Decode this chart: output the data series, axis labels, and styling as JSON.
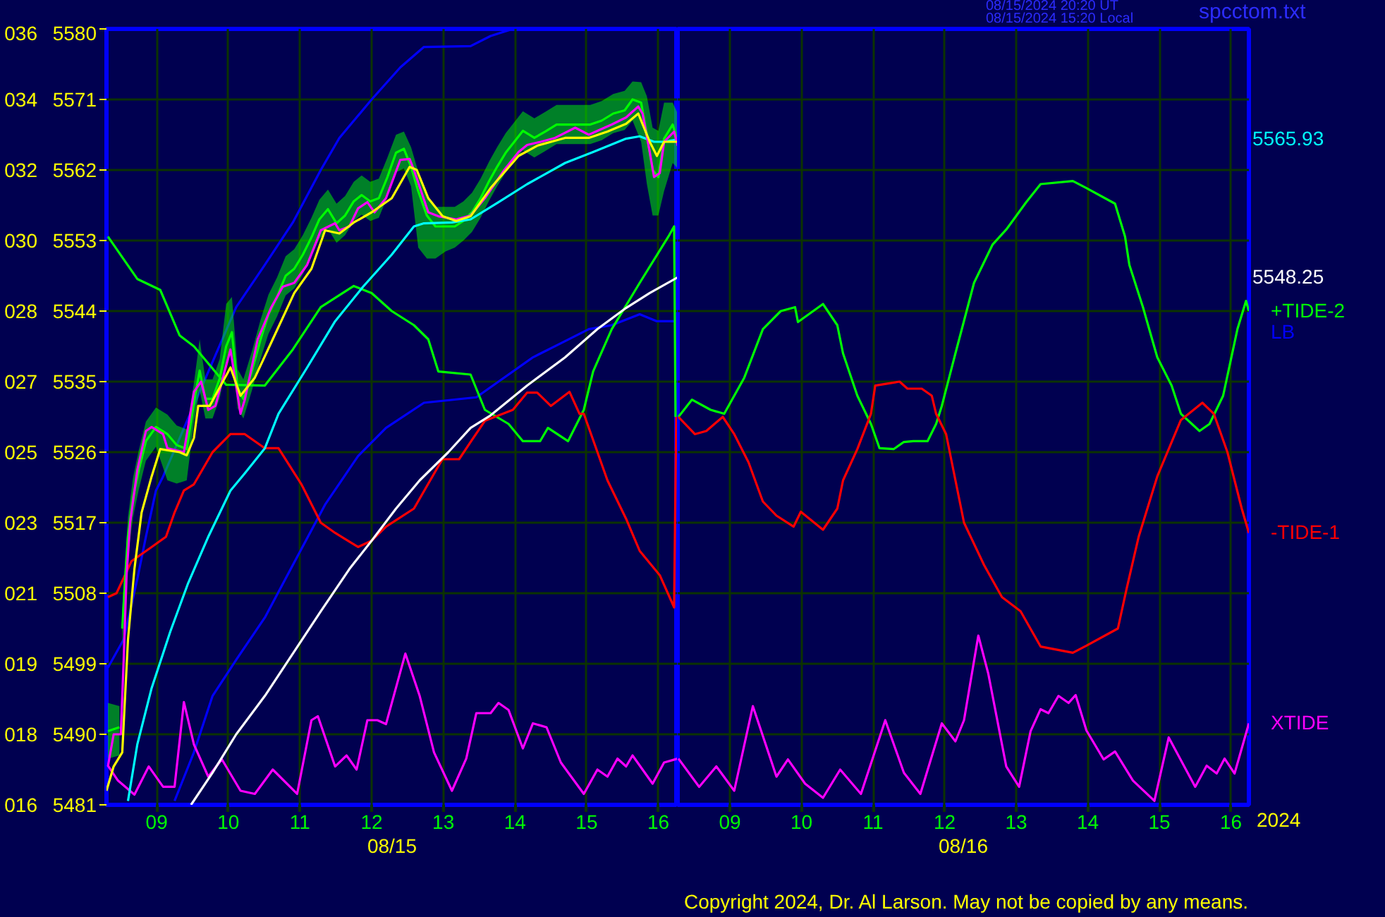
{
  "chart_data": [
    {
      "type": "line",
      "xlabel": "08/15",
      "xlim": [
        8.3,
        16.27
      ],
      "ylim": [
        5481,
        5580
      ],
      "xticks": [
        {
          "value": 9,
          "label": "09"
        },
        10,
        11,
        12,
        13,
        14,
        15,
        16
      ],
      "yticks": [
        5481,
        5490,
        5499,
        5508,
        5517,
        5526,
        5535,
        5544,
        5553,
        5562,
        5571,
        5580
      ],
      "y2lim": [
        15.8,
        35.6
      ],
      "y2ticks": [
        {
          "value": 15.8,
          "label": "016"
        },
        {
          "value": 17.6,
          "label": "018"
        },
        {
          "value": 19.4,
          "label": "019"
        },
        {
          "value": 21.2,
          "label": "021"
        },
        {
          "value": 23.0,
          "label": "023"
        },
        {
          "value": 24.8,
          "label": "025"
        },
        {
          "value": 26.6,
          "label": "027"
        },
        {
          "value": 28.4,
          "label": "028"
        },
        {
          "value": 30.2,
          "label": "030"
        },
        {
          "value": 32.0,
          "label": "032"
        },
        {
          "value": 33.8,
          "label": "034"
        },
        {
          "value": 35.6,
          "label": "036"
        }
      ],
      "grid": true,
      "series": [
        {
          "color": "#0000ff",
          "x": [
            8.32,
            8.54,
            8.73,
            8.85,
            8.99,
            9.09,
            10.11,
            10.51,
            10.9,
            11.29,
            11.55,
            12.0,
            12.4,
            12.73,
            13.38,
            13.66,
            13.97
          ],
          "values": [
            5498.5,
            5502.1,
            5509.8,
            5515.2,
            5521.1,
            5522.9,
            5544.5,
            5549.9,
            5555.3,
            5562.0,
            5566.1,
            5571.0,
            5575.1,
            5577.7,
            5577.8,
            5579.1,
            5580.0
          ]
        },
        {
          "name": "LB",
          "color": "#0000ff",
          "x": [
            9.25,
            9.52,
            9.78,
            10.11,
            10.51,
            10.9,
            11.35,
            11.81,
            12.2,
            12.73,
            13.46,
            14.25,
            14.64,
            15.03,
            15.35,
            15.74,
            15.98,
            16.22,
            16.27
          ],
          "values": [
            5481.5,
            5487.7,
            5494.9,
            5499.5,
            5504.9,
            5511.6,
            5519.3,
            5525.5,
            5529.1,
            5532.3,
            5533.0,
            5538.1,
            5539.9,
            5541.7,
            5542.2,
            5543.6,
            5542.7,
            5542.7,
            5543.1
          ]
        },
        {
          "color": "#00ff00",
          "x": [
            8.32,
            8.73,
            9.05,
            9.32,
            9.52,
            9.97,
            10.51,
            10.9,
            11.29,
            11.75,
            12.0,
            12.28,
            12.59,
            12.79,
            12.93,
            13.38,
            13.58,
            13.91,
            14.11,
            14.35,
            14.46,
            14.74,
            14.96,
            15.09,
            15.35,
            15.74,
            16.14,
            16.22,
            16.24
          ],
          "values": [
            5553.5,
            5548.1,
            5546.7,
            5540.9,
            5539.5,
            5534.6,
            5534.5,
            5539.1,
            5544.5,
            5547.2,
            5546.3,
            5544.0,
            5542.2,
            5540.4,
            5536.3,
            5535.9,
            5531.4,
            5529.6,
            5527.4,
            5527.4,
            5529.1,
            5527.4,
            5531.4,
            5536.3,
            5541.7,
            5547.6,
            5553.5,
            5554.8,
            5530.5
          ]
        },
        {
          "color": "#ff0000",
          "x": [
            8.32,
            8.44,
            8.65,
            8.93,
            9.13,
            9.25,
            9.38,
            9.52,
            9.78,
            10.03,
            10.23,
            10.51,
            10.7,
            11.02,
            11.29,
            11.49,
            11.81,
            12.0,
            12.2,
            12.59,
            12.93,
            12.99,
            13.22,
            13.38,
            13.58,
            13.97,
            14.17,
            14.31,
            14.5,
            14.76,
            14.9,
            14.96,
            15.29,
            15.55,
            15.74,
            16.02,
            16.22,
            16.25
          ],
          "values": [
            5507.5,
            5508.0,
            5512.1,
            5513.9,
            5515.2,
            5518.3,
            5521.1,
            5521.9,
            5526.0,
            5528.3,
            5528.3,
            5526.5,
            5526.5,
            5521.9,
            5517.0,
            5515.7,
            5513.9,
            5514.7,
            5516.5,
            5518.8,
            5524.2,
            5525.1,
            5525.1,
            5527.3,
            5530.0,
            5531.4,
            5533.6,
            5533.6,
            5531.9,
            5533.7,
            5530.9,
            5530.9,
            5522.4,
            5517.5,
            5513.4,
            5510.3,
            5506.2,
            5530.5
          ]
        },
        {
          "color": "#ff00ff",
          "x": [
            8.32,
            8.46,
            8.69,
            8.89,
            9.09,
            9.25,
            9.38,
            9.52,
            9.72,
            9.91,
            10.17,
            10.37,
            10.62,
            10.96,
            11.16,
            11.25,
            11.49,
            11.65,
            11.79,
            11.94,
            12.08,
            12.2,
            12.47,
            12.67,
            12.87,
            13.12,
            13.32,
            13.46,
            13.66,
            13.77,
            13.91,
            14.11,
            14.25,
            14.44,
            14.64,
            14.96,
            15.15,
            15.29,
            15.43,
            15.55,
            15.64,
            15.92,
            16.08,
            16.27
          ],
          "values": [
            5486.0,
            5484.1,
            5482.3,
            5485.9,
            5483.3,
            5483.3,
            5494.1,
            5488.7,
            5484.6,
            5486.8,
            5482.8,
            5482.4,
            5485.5,
            5482.4,
            5491.8,
            5492.3,
            5485.9,
            5487.3,
            5485.5,
            5491.8,
            5491.8,
            5491.3,
            5500.3,
            5494.9,
            5487.7,
            5482.8,
            5486.9,
            5492.7,
            5492.7,
            5494.0,
            5493.1,
            5488.2,
            5491.4,
            5490.9,
            5486.4,
            5482.4,
            5485.5,
            5484.6,
            5486.9,
            5485.9,
            5487.3,
            5483.7,
            5486.4,
            5486.9
          ]
        },
        {
          "color": "#ffffff",
          "x": [
            9.48,
            9.78,
            10.11,
            10.51,
            10.9,
            11.29,
            11.69,
            12.0,
            12.34,
            12.67,
            13.07,
            13.38,
            13.66,
            14.17,
            14.7,
            15.15,
            15.55,
            15.88,
            16.27
          ],
          "values": [
            5481.0,
            5485.1,
            5490.0,
            5494.9,
            5500.3,
            5505.7,
            5511.1,
            5514.7,
            5518.8,
            5522.4,
            5526.0,
            5529.1,
            5530.7,
            5534.5,
            5538.1,
            5541.7,
            5544.4,
            5546.3,
            5548.3
          ]
        },
        {
          "color": "#00ff00",
          "x": [
            8.32,
            8.48,
            8.5,
            8.52,
            8.56,
            8.6,
            8.67,
            8.75,
            8.85,
            8.99,
            9.15,
            9.28,
            9.42,
            9.52,
            9.6,
            9.68,
            9.78,
            9.88,
            9.97,
            10.05,
            10.13,
            10.21,
            10.33,
            10.45,
            10.56,
            10.68,
            10.8,
            10.92,
            11.04,
            11.16,
            11.27,
            11.39,
            11.51,
            11.63,
            11.75,
            11.86,
            11.98,
            12.1,
            12.22,
            12.34,
            12.45,
            12.55,
            12.65,
            12.77,
            12.89,
            13.03,
            13.16,
            13.28,
            13.4,
            13.52,
            13.64,
            13.75,
            13.87,
            13.99,
            14.11,
            14.27,
            14.42,
            14.58,
            14.74,
            14.9,
            15.05,
            15.21,
            15.37,
            15.53,
            15.64,
            15.76,
            15.84,
            15.92,
            16.0,
            16.08,
            16.2,
            16.27
          ],
          "values": [
            5490.4,
            5490.9,
            null,
            5503.5,
            5509.8,
            5515.2,
            5520.2,
            5523.7,
            5527.4,
            5529.2,
            5528.3,
            5526.9,
            5526.4,
            5532.3,
            5536.4,
            5532.8,
            5532.8,
            5535.4,
            5539.5,
            5541.3,
            5534.1,
            5532.8,
            5536.4,
            5540.4,
            5543.6,
            5545.8,
            5548.5,
            5549.4,
            5551.2,
            5553.4,
            5555.7,
            5557.0,
            5555.2,
            5556.2,
            5558.0,
            5558.8,
            5558.0,
            5558.4,
            5561.1,
            5564.2,
            5564.7,
            5562.4,
            5559.3,
            5556.2,
            5554.8,
            5554.8,
            5554.8,
            5555.5,
            5556.6,
            5558.4,
            5560.6,
            5562.4,
            5564.2,
            5565.6,
            5567.0,
            5566.1,
            5566.9,
            5567.8,
            5567.8,
            5567.8,
            5567.8,
            5568.3,
            5569.2,
            5569.6,
            5571.0,
            5570.6,
            5566.5,
            5562.0,
            5561.1,
            5566.0,
            5567.8,
            5565.6
          ],
          "upper": [
            5494.0,
            5493.6,
            null,
            5506.0,
            5512.3,
            5517.7,
            5522.7,
            5526.2,
            5529.9,
            5531.7,
            5530.8,
            5529.4,
            5528.9,
            5534.8,
            5540.4,
            5535.3,
            5535.3,
            5537.9,
            5544.9,
            5545.8,
            5536.6,
            5535.3,
            5538.9,
            5542.9,
            5546.1,
            5548.3,
            5551.0,
            5551.9,
            5553.7,
            5555.9,
            5558.2,
            5559.5,
            5557.7,
            5558.7,
            5560.5,
            5561.3,
            5560.5,
            5560.9,
            5563.6,
            5566.5,
            5566.9,
            5564.9,
            5561.8,
            5558.7,
            5557.3,
            5557.3,
            5557.3,
            5558.0,
            5559.1,
            5560.9,
            5563.1,
            5564.9,
            5566.7,
            5568.1,
            5569.5,
            5568.6,
            5569.4,
            5570.3,
            5570.3,
            5570.3,
            5570.3,
            5570.8,
            5571.7,
            5572.1,
            5573.3,
            5573.2,
            5571.4,
            5567.4,
            5567.0,
            5570.6,
            5570.6,
            5569.2
          ],
          "lower": [
            5486.9,
            5487.3,
            null,
            5501.0,
            5507.3,
            5512.7,
            5517.7,
            5521.2,
            5524.9,
            5526.7,
            5522.4,
            5522.0,
            5522.4,
            5529.8,
            5533.9,
            5530.3,
            5530.3,
            5532.9,
            5537.0,
            5538.8,
            5531.6,
            5530.3,
            5533.9,
            5537.9,
            5541.1,
            5543.3,
            5546.0,
            5546.9,
            5548.7,
            5550.9,
            5553.2,
            5554.5,
            5552.7,
            5553.7,
            5555.5,
            5556.3,
            5555.5,
            5555.9,
            5558.6,
            5561.7,
            5562.2,
            5559.9,
            5552.1,
            5550.7,
            5550.7,
            5551.6,
            5552.1,
            5553.0,
            5554.1,
            5555.9,
            5558.1,
            5559.9,
            5561.7,
            5563.1,
            5564.5,
            5563.6,
            5564.4,
            5565.3,
            5565.3,
            5565.3,
            5565.3,
            5565.8,
            5566.7,
            5567.1,
            5568.3,
            5565.6,
            5560.2,
            5556.2,
            5556.2,
            5559.3,
            5562.9,
            5562.2
          ]
        },
        {
          "color": "#00ffff",
          "x": [
            8.6,
            8.73,
            8.93,
            9.19,
            9.44,
            9.72,
            10.03,
            10.23,
            10.51,
            10.7,
            11.1,
            11.49,
            11.88,
            12.28,
            12.59,
            12.73,
            13.12,
            13.38,
            13.77,
            14.17,
            14.7,
            15.09,
            15.55,
            15.74,
            15.94,
            16.08,
            16.27
          ],
          "values": [
            5481.5,
            5488.7,
            5495.9,
            5503.1,
            5509.3,
            5515.2,
            5521.1,
            5523.3,
            5526.5,
            5530.9,
            5536.8,
            5542.7,
            5547.1,
            5551.2,
            5554.8,
            5555.2,
            5555.3,
            5555.7,
            5557.9,
            5560.2,
            5562.9,
            5564.3,
            5566.0,
            5566.3,
            5565.6,
            5565.6,
            5565.9
          ]
        },
        {
          "color": "#ff00ff",
          "x": [
            8.32,
            8.4,
            8.5,
            8.54,
            8.58,
            8.63,
            8.73,
            8.85,
            8.93,
            9.09,
            9.15,
            9.38,
            9.52,
            9.62,
            9.72,
            9.82,
            10.03,
            10.17,
            10.23,
            10.41,
            10.6,
            10.76,
            10.92,
            11.1,
            11.29,
            11.49,
            11.55,
            11.69,
            11.81,
            11.94,
            12.04,
            12.2,
            12.4,
            12.53,
            12.59,
            12.79,
            12.93,
            13.18,
            13.38,
            13.58,
            13.85,
            14.05,
            14.17,
            14.36,
            14.56,
            14.84,
            15.03,
            15.15,
            15.35,
            15.55,
            15.72,
            15.78,
            15.88,
            15.94,
            16.02,
            16.08,
            16.22,
            16.27
          ],
          "values": [
            5485.9,
            5490.0,
            5490.0,
            5499.5,
            5510.3,
            5517.0,
            5523.7,
            5528.7,
            5529.2,
            5528.3,
            5526.5,
            5526.0,
            5533.7,
            5535.0,
            5531.4,
            5531.9,
            5539.1,
            5530.9,
            5532.7,
            5540.4,
            5544.5,
            5547.1,
            5547.6,
            5549.9,
            5554.3,
            5555.2,
            5554.3,
            5554.8,
            5557.1,
            5557.9,
            5556.6,
            5558.4,
            5563.3,
            5563.4,
            5562.0,
            5556.6,
            5556.1,
            5555.7,
            5556.2,
            5558.4,
            5562.0,
            5564.3,
            5565.2,
            5565.6,
            5566.1,
            5567.4,
            5566.5,
            5567.0,
            5567.8,
            5568.7,
            5570.1,
            5569.2,
            5564.3,
            5561.1,
            5561.6,
            5565.6,
            5566.9,
            5565.1
          ]
        },
        {
          "color": "#ffff00",
          "x": [
            8.3,
            8.4,
            8.52,
            8.6,
            8.69,
            8.79,
            8.93,
            9.05,
            9.32,
            9.42,
            9.52,
            9.58,
            9.74,
            10.03,
            10.17,
            10.37,
            10.62,
            10.92,
            11.16,
            11.35,
            11.55,
            11.75,
            12.0,
            12.28,
            12.53,
            12.63,
            12.79,
            12.99,
            13.18,
            13.38,
            13.66,
            14.05,
            14.31,
            14.7,
            15.03,
            15.29,
            15.55,
            15.72,
            15.88,
            15.98,
            16.08,
            16.27
          ],
          "values": [
            5482.8,
            5485.9,
            5487.7,
            5502.1,
            5511.1,
            5518.3,
            5522.9,
            5526.4,
            5526.0,
            5525.6,
            5527.8,
            5531.9,
            5531.9,
            5536.8,
            5533.2,
            5535.5,
            5540.4,
            5546.3,
            5549.4,
            5554.3,
            5553.9,
            5555.3,
            5556.6,
            5558.4,
            5562.4,
            5562.0,
            5558.4,
            5556.1,
            5555.5,
            5556.1,
            5559.7,
            5563.8,
            5565.1,
            5566.1,
            5566.1,
            5566.9,
            5567.9,
            5569.2,
            5565.6,
            5563.8,
            5565.6,
            5565.6
          ]
        }
      ]
    },
    {
      "type": "line",
      "xlabel": "08/16",
      "tick_labels": "x",
      "annotations": [
        "08/15/2024 20:20 UT",
        "08/15/2024 15:20 Local",
        "spcctom.txt",
        "5565.93",
        "5548.25",
        "2024",
        "Copyright 2024, Dr. Al Larson. May not be copied by any means."
      ],
      "xlim": [
        8.27,
        16.25
      ],
      "ylim": [
        5481,
        5580
      ],
      "xticks": [
        {
          "value": 9,
          "label": "09"
        },
        10,
        11,
        12,
        13,
        14,
        15,
        16
      ],
      "yticks": [
        5481,
        5490,
        5499,
        5508,
        5517,
        5526,
        5535,
        5544,
        5553,
        5562,
        5571,
        5580
      ],
      "grid": true,
      "series": [
        {
          "name": "+TIDE-2",
          "color": "#00ff00",
          "x": [
            8.28,
            8.47,
            8.73,
            8.92,
            9.2,
            9.46,
            9.71,
            9.91,
            9.95,
            10.3,
            10.5,
            10.58,
            10.78,
            10.97,
            11.09,
            11.29,
            11.43,
            11.56,
            11.76,
            11.88,
            11.96,
            12.15,
            12.41,
            12.67,
            12.86,
            13.14,
            13.34,
            13.79,
            13.98,
            14.38,
            14.52,
            14.58,
            14.77,
            14.97,
            15.17,
            15.3,
            15.56,
            15.7,
            15.89,
            16.09,
            16.21,
            16.25
          ],
          "values": [
            5530.5,
            5532.7,
            5531.4,
            5530.9,
            5535.5,
            5541.7,
            5544.0,
            5544.5,
            5542.6,
            5544.9,
            5542.2,
            5538.6,
            5533.2,
            5529.6,
            5526.5,
            5526.4,
            5527.3,
            5527.4,
            5527.4,
            5529.6,
            5531.9,
            5538.6,
            5547.6,
            5552.5,
            5554.4,
            5557.9,
            5560.2,
            5560.6,
            5559.7,
            5557.7,
            5553.5,
            5549.9,
            5544.5,
            5538.1,
            5534.5,
            5530.9,
            5528.7,
            5529.6,
            5533.2,
            5541.7,
            5545.3,
            5544.0
          ]
        },
        {
          "name": "-TIDE-1",
          "color": "#ff0000",
          "x": [
            8.28,
            8.51,
            8.67,
            8.9,
            9.06,
            9.26,
            9.46,
            9.65,
            9.89,
            9.99,
            10.3,
            10.5,
            10.58,
            10.78,
            10.97,
            11.03,
            11.37,
            11.48,
            11.68,
            11.82,
            11.88,
            12.02,
            12.27,
            12.55,
            12.8,
            13.06,
            13.34,
            13.79,
            13.98,
            14.42,
            14.54,
            14.71,
            14.97,
            15.3,
            15.6,
            15.76,
            15.95,
            16.15,
            16.25
          ],
          "values": [
            5530.5,
            5528.3,
            5528.7,
            5530.5,
            5528.3,
            5524.7,
            5519.7,
            5517.9,
            5516.5,
            5518.4,
            5516.1,
            5518.8,
            5522.4,
            5526.4,
            5530.9,
            5534.5,
            5535.0,
            5534.1,
            5534.1,
            5533.2,
            5530.9,
            5528.3,
            5517.0,
            5511.6,
            5507.5,
            5505.7,
            5501.2,
            5500.4,
            5501.3,
            5503.5,
            5508.5,
            5515.2,
            5522.9,
            5530.1,
            5532.3,
            5530.9,
            5526.0,
            5518.8,
            5515.7
          ]
        },
        {
          "name": "XTIDE",
          "color": "#ff00ff",
          "x": [
            8.28,
            8.57,
            8.81,
            9.06,
            9.32,
            9.65,
            9.81,
            10.05,
            10.3,
            10.54,
            10.83,
            11.17,
            11.43,
            11.66,
            11.96,
            12.15,
            12.27,
            12.47,
            12.61,
            12.86,
            13.04,
            13.2,
            13.34,
            13.45,
            13.59,
            13.73,
            13.83,
            13.98,
            14.22,
            14.38,
            14.63,
            14.93,
            15.13,
            15.5,
            15.66,
            15.8,
            15.91,
            16.05,
            16.25
          ],
          "values": [
            5486.9,
            5483.3,
            5485.9,
            5482.8,
            5493.6,
            5484.6,
            5486.8,
            5483.7,
            5481.9,
            5485.5,
            5482.4,
            5491.8,
            5485.1,
            5482.4,
            5491.4,
            5489.1,
            5491.8,
            5502.6,
            5497.7,
            5485.9,
            5483.3,
            5490.4,
            5493.2,
            5492.7,
            5494.9,
            5494.0,
            5495.0,
            5490.5,
            5486.8,
            5487.8,
            5484.1,
            5481.5,
            5489.6,
            5483.3,
            5486.0,
            5485.0,
            5486.9,
            5485.0,
            5491.4
          ]
        }
      ]
    }
  ]
}
